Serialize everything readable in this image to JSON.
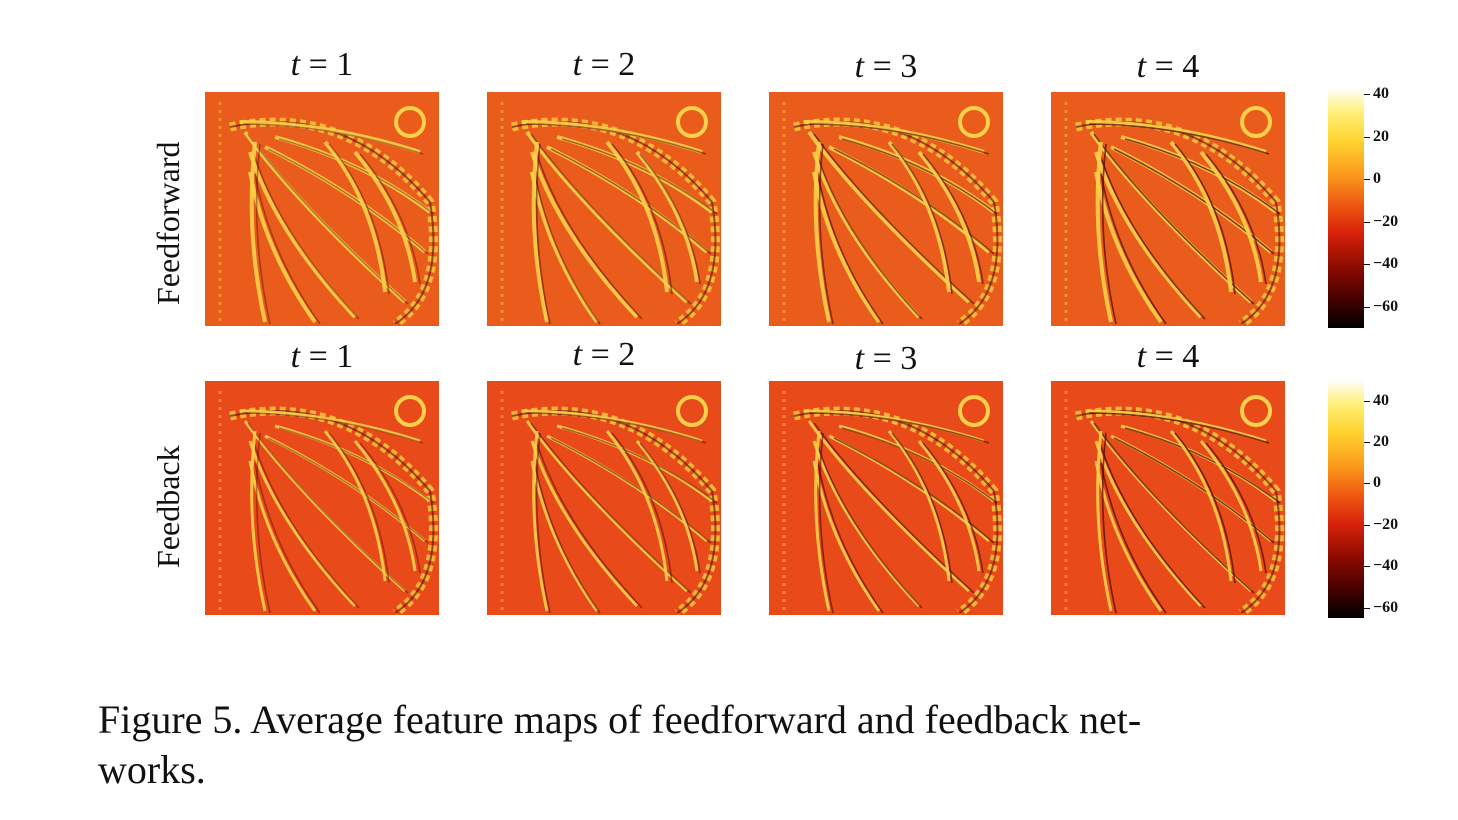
{
  "figure": {
    "rows": [
      {
        "label": "Feedforward",
        "titles": [
          "t = 1",
          "t = 2",
          "t = 3",
          "t = 4"
        ],
        "colorbar": {
          "min": -70,
          "max": 43,
          "ticks": [
            40,
            20,
            0,
            -20,
            -40,
            -60
          ],
          "tick_labels": [
            "40",
            "20",
            "0",
            "−20",
            "−40",
            "−60"
          ]
        }
      },
      {
        "label": "Feedback",
        "titles": [
          "t = 1",
          "t = 2",
          "t = 3",
          "t = 4"
        ],
        "colorbar": {
          "min": -65,
          "max": 50,
          "ticks": [
            40,
            20,
            0,
            -20,
            -40,
            -60
          ],
          "tick_labels": [
            "40",
            "20",
            "0",
            "−20",
            "−40",
            "−60"
          ]
        }
      }
    ],
    "colormap": "hot",
    "caption": "Figure 5. Average feature maps of feedforward and feedback net- works."
  }
}
